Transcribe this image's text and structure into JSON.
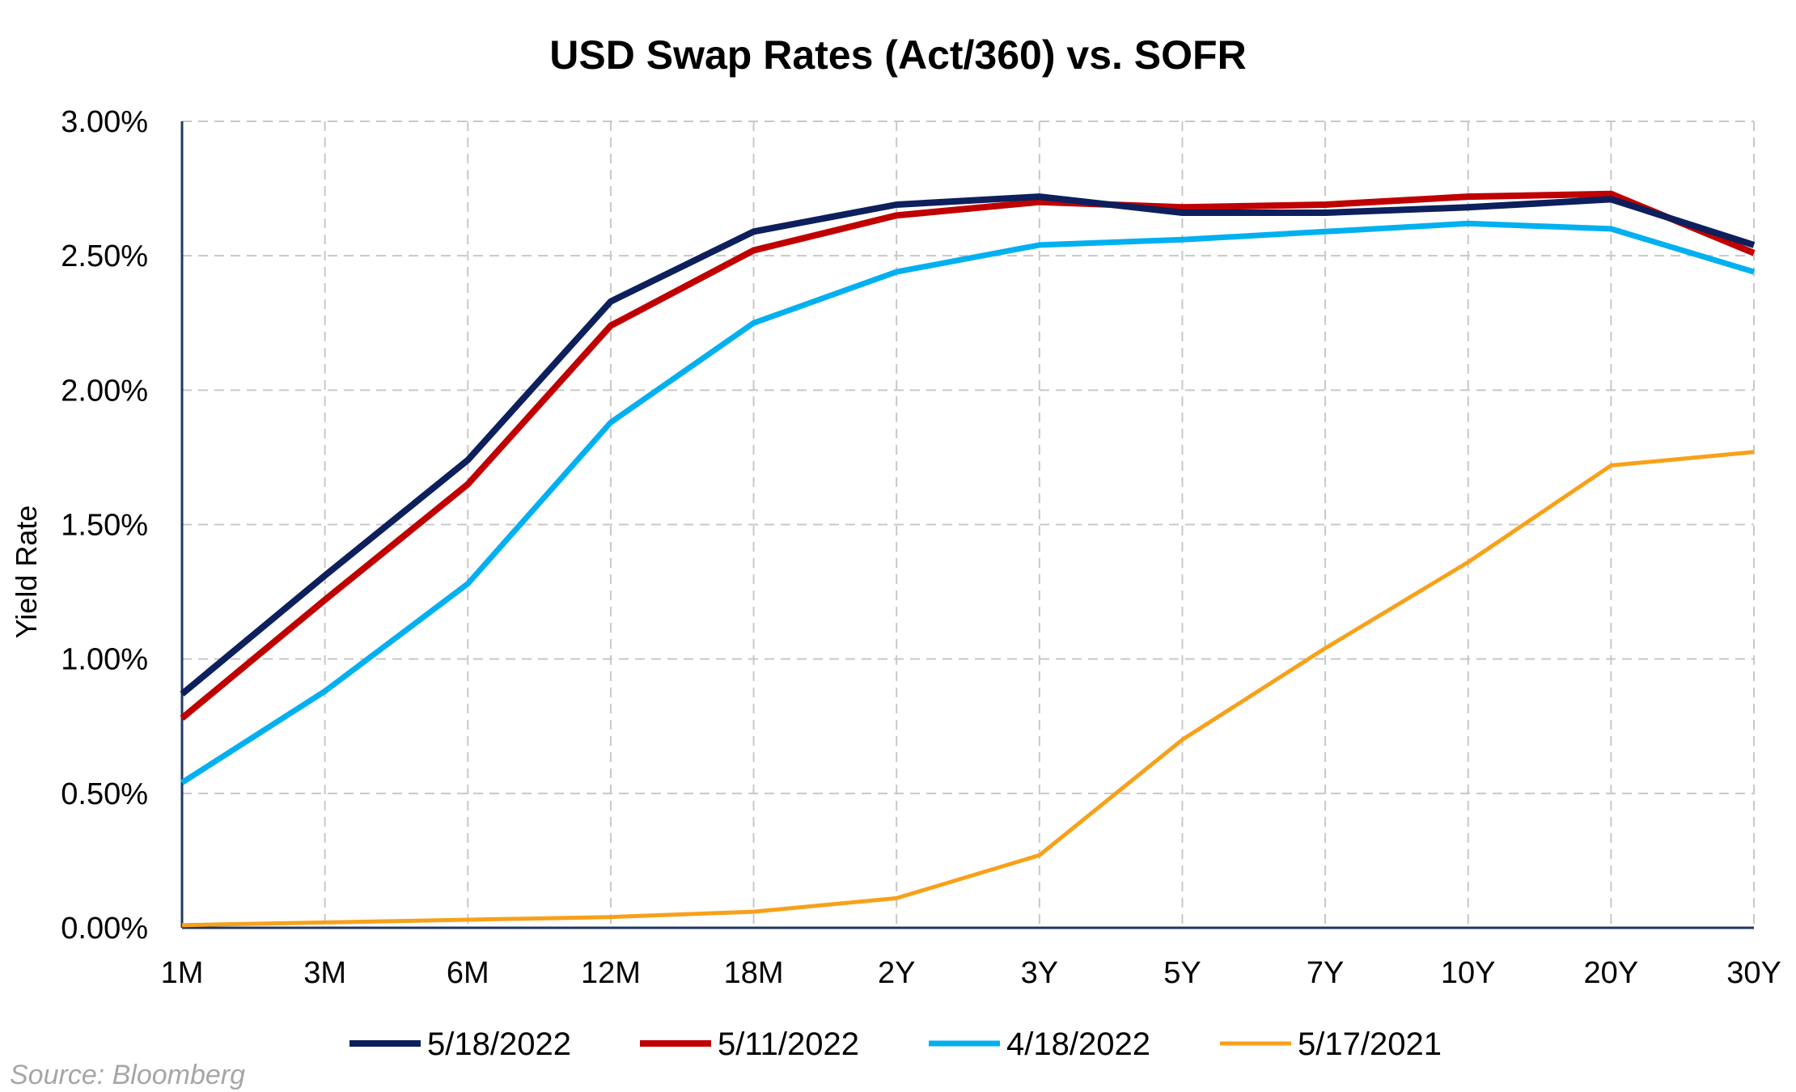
{
  "chart_data": {
    "type": "line",
    "title": "USD Swap Rates (Act/360) vs. SOFR",
    "xlabel": "",
    "ylabel": "Yield Rate",
    "categories": [
      "1M",
      "3M",
      "6M",
      "12M",
      "18M",
      "2Y",
      "3Y",
      "5Y",
      "7Y",
      "10Y",
      "20Y",
      "30Y"
    ],
    "ylim": [
      0,
      3.0
    ],
    "yticks": [
      "0.00%",
      "0.50%",
      "1.00%",
      "1.50%",
      "2.00%",
      "2.50%",
      "3.00%"
    ],
    "yticks_values": [
      0,
      0.5,
      1.0,
      1.5,
      2.0,
      2.5,
      3.0
    ],
    "grid": true,
    "legend_position": "bottom",
    "series": [
      {
        "name": "5/18/2022",
        "color": "#0d1f5c",
        "values": [
          0.87,
          1.31,
          1.74,
          2.33,
          2.59,
          2.69,
          2.72,
          2.66,
          2.66,
          2.68,
          2.71,
          2.54
        ]
      },
      {
        "name": "5/11/2022",
        "color": "#c00000",
        "values": [
          0.78,
          1.22,
          1.65,
          2.24,
          2.52,
          2.65,
          2.7,
          2.68,
          2.69,
          2.72,
          2.73,
          2.51
        ]
      },
      {
        "name": "4/18/2022",
        "color": "#00b0f0",
        "values": [
          0.54,
          0.88,
          1.28,
          1.88,
          2.25,
          2.44,
          2.54,
          2.56,
          2.59,
          2.62,
          2.6,
          2.44
        ]
      },
      {
        "name": "5/17/2021",
        "color": "#f7a11a",
        "values": [
          0.01,
          0.02,
          0.03,
          0.04,
          0.06,
          0.11,
          0.27,
          0.7,
          1.04,
          1.36,
          1.72,
          1.77
        ]
      }
    ],
    "source": "Source: Bloomberg"
  }
}
